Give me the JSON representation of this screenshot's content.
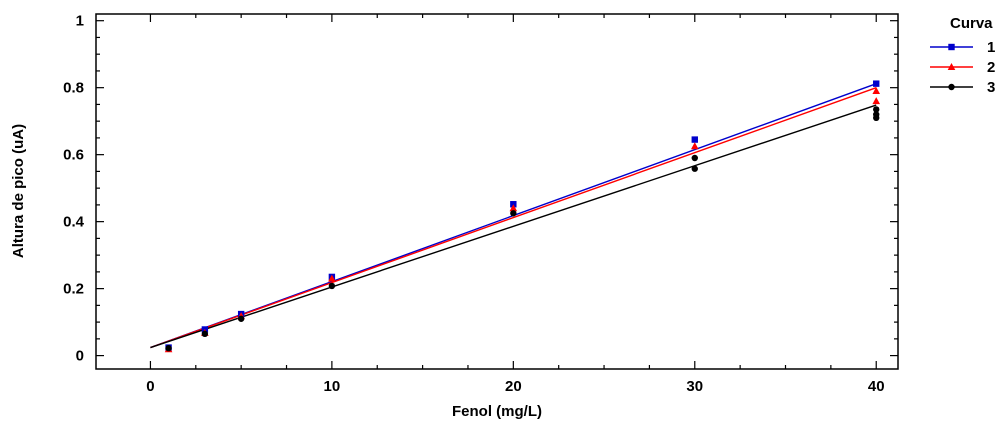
{
  "chart_data": {
    "type": "scatter",
    "xlabel": "Fenol (mg/L)",
    "ylabel": "Altura de pico (uA)",
    "xlim": [
      -3,
      41.2
    ],
    "ylim": [
      -0.04,
      1.02
    ],
    "xticks": [
      0,
      10,
      20,
      30,
      40
    ],
    "xtick_labels": [
      "0",
      "10",
      "20",
      "30",
      "40"
    ],
    "yticks": [
      0,
      0.2,
      0.4,
      0.6,
      0.8,
      1
    ],
    "ytick_labels": [
      "0",
      "0.2",
      "0.4",
      "0.6",
      "0.8",
      "1"
    ],
    "grid": false,
    "legend": {
      "title": "Curva",
      "placement": "top-right outside"
    },
    "series": [
      {
        "name": "1",
        "color": "#0000cc",
        "marker": "square",
        "points": [
          [
            1,
            0.024
          ],
          [
            3,
            0.078
          ],
          [
            5,
            0.124
          ],
          [
            10,
            0.235
          ],
          [
            20,
            0.452
          ],
          [
            30,
            0.645
          ],
          [
            40,
            0.812
          ]
        ],
        "fit": {
          "intercept": 0.024,
          "slope": 0.0197
        }
      },
      {
        "name": "2",
        "color": "#ff0000",
        "marker": "triangle",
        "points": [
          [
            1,
            0.019
          ],
          [
            3,
            0.068
          ],
          [
            5,
            0.118
          ],
          [
            10,
            0.23
          ],
          [
            20,
            0.44
          ],
          [
            30,
            0.625
          ],
          [
            40,
            0.76
          ],
          [
            40,
            0.79
          ]
        ],
        "fit": {
          "intercept": 0.024,
          "slope": 0.0194
        }
      },
      {
        "name": "3",
        "color": "#000000",
        "marker": "circle",
        "points": [
          [
            1,
            0.022
          ],
          [
            3,
            0.065
          ],
          [
            5,
            0.11
          ],
          [
            10,
            0.208
          ],
          [
            20,
            0.425
          ],
          [
            30,
            0.558
          ],
          [
            30,
            0.59
          ],
          [
            40,
            0.71
          ],
          [
            40,
            0.72
          ],
          [
            40,
            0.735
          ]
        ],
        "fit": {
          "intercept": 0.024,
          "slope": 0.0181
        }
      }
    ]
  }
}
